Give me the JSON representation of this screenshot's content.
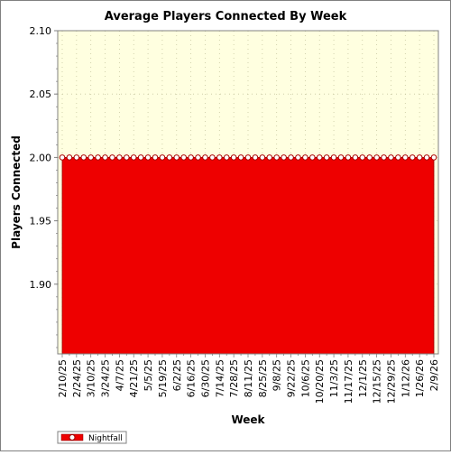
{
  "chart_data": {
    "type": "area",
    "title": "Average Players Connected By Week",
    "xlabel": "Week",
    "ylabel": "Players Connected",
    "ylim": [
      1.845,
      2.1
    ],
    "yticks": [
      1.9,
      1.95,
      2.0,
      2.05,
      2.1
    ],
    "ytick_labels": [
      "1.90",
      "1.95",
      "2.00",
      "2.05",
      "2.10"
    ],
    "grid": true,
    "legend_position": "bottom-left",
    "x_labels_shown": [
      "2/10/25",
      "2/24/25",
      "3/10/25",
      "3/24/25",
      "4/7/25",
      "4/21/25",
      "5/5/25",
      "5/19/25",
      "6/2/25",
      "6/16/25",
      "6/30/25",
      "7/14/25",
      "7/28/25",
      "8/11/25",
      "8/25/25",
      "9/8/25",
      "9/22/25",
      "10/6/25",
      "10/20/25",
      "11/3/25",
      "11/17/25",
      "12/1/25",
      "12/15/25",
      "12/29/25",
      "1/12/26",
      "1/26/26",
      "2/9/26"
    ],
    "series": [
      {
        "name": "Nightfall",
        "color": "#ee0000",
        "marker": "circle",
        "x": [
          "2/10/25",
          "2/17/25",
          "2/24/25",
          "3/3/25",
          "3/10/25",
          "3/17/25",
          "3/24/25",
          "3/31/25",
          "4/7/25",
          "4/14/25",
          "4/21/25",
          "4/28/25",
          "5/5/25",
          "5/12/25",
          "5/19/25",
          "5/26/25",
          "6/2/25",
          "6/9/25",
          "6/16/25",
          "6/23/25",
          "6/30/25",
          "7/7/25",
          "7/14/25",
          "7/21/25",
          "7/28/25",
          "8/4/25",
          "8/11/25",
          "8/18/25",
          "8/25/25",
          "9/1/25",
          "9/8/25",
          "9/15/25",
          "9/22/25",
          "9/29/25",
          "10/6/25",
          "10/13/25",
          "10/20/25",
          "10/27/25",
          "11/3/25",
          "11/10/25",
          "11/17/25",
          "11/24/25",
          "12/1/25",
          "12/8/25",
          "12/15/25",
          "12/22/25",
          "12/29/25",
          "1/5/26",
          "1/12/26",
          "1/19/26",
          "1/26/26",
          "2/2/26",
          "2/9/26"
        ],
        "values": [
          2,
          2,
          2,
          2,
          2,
          2,
          2,
          2,
          2,
          2,
          2,
          2,
          2,
          2,
          2,
          2,
          2,
          2,
          2,
          2,
          2,
          2,
          2,
          2,
          2,
          2,
          2,
          2,
          2,
          2,
          2,
          2,
          2,
          2,
          2,
          2,
          2,
          2,
          2,
          2,
          2,
          2,
          2,
          2,
          2,
          2,
          2,
          2,
          2,
          2,
          2,
          2,
          2
        ]
      }
    ]
  },
  "colors": {
    "plot_background": "#ffffe0",
    "grid": "#c8c8a0",
    "border": "#808080"
  }
}
